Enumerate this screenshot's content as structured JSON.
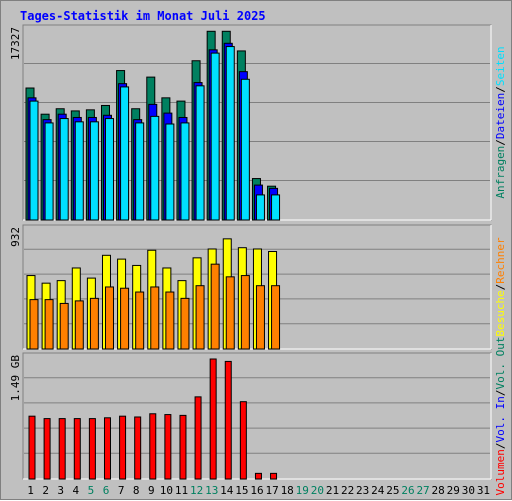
{
  "title": "Tages-Statistik im Monat Juli 2025",
  "chart_data": [
    {
      "type": "bar",
      "categories": [
        "1",
        "2",
        "3",
        "4",
        "5",
        "6",
        "7",
        "8",
        "9",
        "10",
        "11",
        "12",
        "13",
        "14",
        "15",
        "16",
        "17",
        "18",
        "19",
        "20",
        "21",
        "22",
        "23",
        "24",
        "25",
        "26",
        "27",
        "28",
        "29",
        "30",
        "31"
      ],
      "ymax_label": "17327",
      "ylim": [
        0,
        17327
      ],
      "legend": [
        {
          "label": "Anfragen",
          "color": "#008060"
        },
        {
          "label": "Dateien",
          "color": "#0000ff"
        },
        {
          "label": "Seiten",
          "color": "#00e0ff"
        }
      ],
      "series": [
        {
          "name": "Anfragen",
          "color": "#008060",
          "values": [
            12100,
            9700,
            10200,
            10000,
            10100,
            10500,
            13700,
            10200,
            13100,
            11200,
            10900,
            14600,
            17300,
            17300,
            15500,
            3800,
            3100,
            0,
            0,
            0,
            0,
            0,
            0,
            0,
            0,
            0,
            0,
            0,
            0,
            0,
            0
          ]
        },
        {
          "name": "Dateien",
          "color": "#0000ff",
          "values": [
            11200,
            9200,
            9700,
            9400,
            9400,
            9600,
            12500,
            9200,
            10600,
            9800,
            9400,
            12600,
            15600,
            16200,
            13600,
            3200,
            2900,
            0,
            0,
            0,
            0,
            0,
            0,
            0,
            0,
            0,
            0,
            0,
            0,
            0,
            0
          ]
        },
        {
          "name": "Seiten",
          "color": "#00e0ff",
          "values": [
            10900,
            8900,
            9300,
            9000,
            9000,
            9300,
            12200,
            8900,
            9500,
            8800,
            8900,
            12300,
            15300,
            15900,
            12900,
            2300,
            2300,
            0,
            0,
            0,
            0,
            0,
            0,
            0,
            0,
            0,
            0,
            0,
            0,
            0,
            0
          ]
        }
      ]
    },
    {
      "type": "bar",
      "ymax_label": "932",
      "ylim": [
        0,
        932
      ],
      "legend": [
        {
          "label": "Besuche",
          "color": "#ffff00"
        },
        {
          "label": "Rechner",
          "color": "#ff8000"
        }
      ],
      "series": [
        {
          "name": "Besuche",
          "color": "#ffff00",
          "values": [
            580,
            520,
            540,
            640,
            560,
            740,
            710,
            660,
            780,
            640,
            540,
            720,
            790,
            870,
            800,
            790,
            770,
            0,
            0,
            0,
            0,
            0,
            0,
            0,
            0,
            0,
            0,
            0,
            0,
            0,
            0
          ]
        },
        {
          "name": "Rechner",
          "color": "#ff8000",
          "values": [
            390,
            390,
            360,
            380,
            400,
            490,
            480,
            450,
            490,
            450,
            400,
            500,
            670,
            570,
            580,
            500,
            500,
            0,
            0,
            0,
            0,
            0,
            0,
            0,
            0,
            0,
            0,
            0,
            0,
            0,
            0
          ]
        }
      ]
    },
    {
      "type": "bar",
      "ymax_label": "1.49 GB",
      "ylim": [
        0,
        1.49
      ],
      "legend": [
        {
          "label": "Volumen",
          "color": "#ff0000"
        },
        {
          "label": "Vol. In",
          "color": "#0000ff"
        },
        {
          "label": "Vol. Out",
          "color": "#008060"
        }
      ],
      "series": [
        {
          "name": "Volumen",
          "color": "#ff0000",
          "values": [
            0.78,
            0.75,
            0.75,
            0.75,
            0.75,
            0.76,
            0.78,
            0.77,
            0.81,
            0.8,
            0.79,
            1.02,
            1.49,
            1.46,
            0.96,
            0.07,
            0.07,
            0,
            0,
            0,
            0,
            0,
            0,
            0,
            0,
            0,
            0,
            0,
            0,
            0,
            0
          ]
        }
      ]
    }
  ],
  "weekend_days": [
    5,
    6,
    12,
    13,
    19,
    20,
    26,
    27
  ]
}
